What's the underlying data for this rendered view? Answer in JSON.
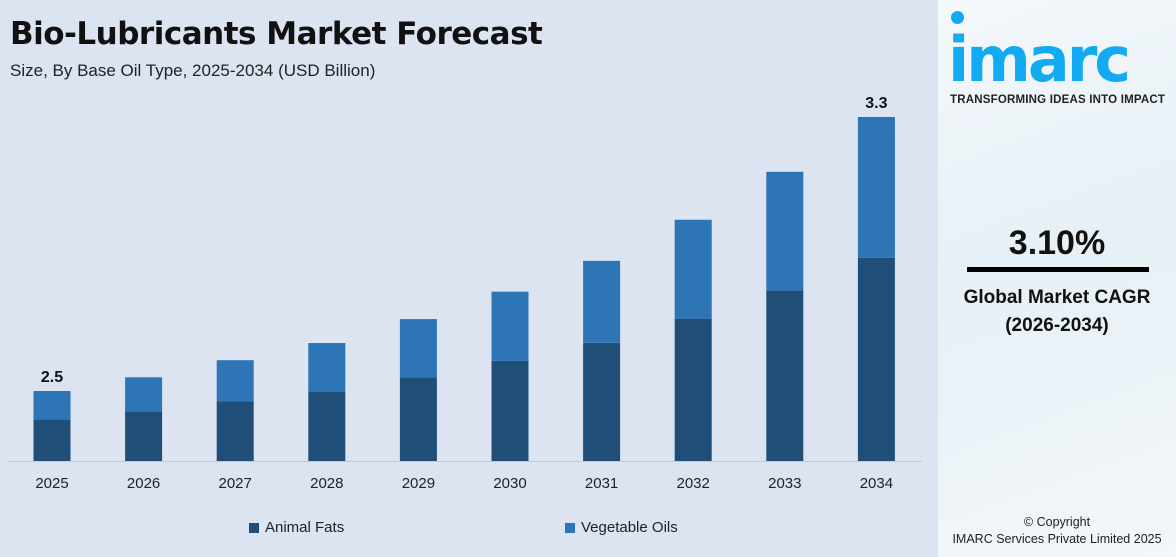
{
  "header": {
    "title": "Bio-Lubricants Market Forecast",
    "subtitle": "Size, By Base Oil Type, 2025-2034 (USD Billion)"
  },
  "chart_data": {
    "type": "bar",
    "stacked": true,
    "title": "Bio-Lubricants Market Forecast",
    "subtitle": "Size, By Base Oil Type, 2025-2034 (USD Billion)",
    "categories": [
      "2025",
      "2026",
      "2027",
      "2028",
      "2029",
      "2030",
      "2031",
      "2032",
      "2033",
      "2034"
    ],
    "series": [
      {
        "name": "Animal Fats",
        "color": "#1f4e79",
        "values": [
          1.48,
          1.5,
          1.53,
          1.56,
          1.6,
          1.65,
          1.7,
          1.77,
          1.85,
          1.95
        ]
      },
      {
        "name": "Vegetable Oils",
        "color": "#2e75b6",
        "values": [
          1.02,
          1.04,
          1.06,
          1.08,
          1.11,
          1.14,
          1.18,
          1.23,
          1.29,
          1.35
        ]
      }
    ],
    "data_labels": {
      "2025": "2.5",
      "2034": "3.3"
    },
    "grid": false,
    "legend": "bottom"
  },
  "panel": {
    "logo": "imarc",
    "tagline": "TRANSFORMING IDEAS INTO IMPACT",
    "cagr_value": "3.10%",
    "cagr_label": "Global Market CAGR",
    "cagr_period": "(2026-2034)",
    "copyright": "© Copyright",
    "company": "IMARC Services Private Limited 2025"
  }
}
